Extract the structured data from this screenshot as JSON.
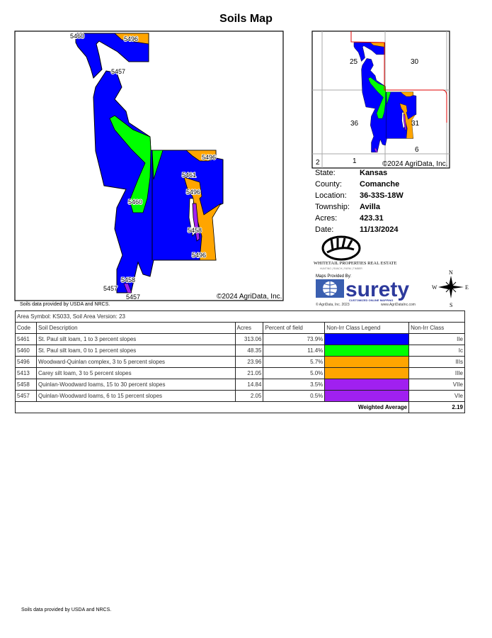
{
  "title": "Soils Map",
  "map": {
    "labels": [
      "5460",
      "5496",
      "5457",
      "5496",
      "5461",
      "5496",
      "5460",
      "5458",
      "5496",
      "5458",
      "5457",
      "5457"
    ],
    "copyright": "©2024 AgriData, Inc.",
    "source_note": "Soils data provided by USDA and NRCS."
  },
  "inset": {
    "sections": [
      "25",
      "30",
      "36",
      "31",
      "2",
      "1",
      "6"
    ],
    "copyright": "©2024 AgriData, Inc."
  },
  "info": [
    {
      "key": "State:",
      "value": "Kansas"
    },
    {
      "key": "County:",
      "value": "Comanche"
    },
    {
      "key": "Location:",
      "value": "36-33S-18W"
    },
    {
      "key": "Township:",
      "value": "Avilla"
    },
    {
      "key": "Acres:",
      "value": "423.31"
    },
    {
      "key": "Date:",
      "value": "11/13/2024"
    }
  ],
  "logos": {
    "whitetail_name": "WHITETAIL PROPERTIES REAL ESTATE",
    "whitetail_tag": "HUNTING | RANCH | FARM | TIMBER",
    "maps_provided": "Maps Provided By:",
    "surety": "surety",
    "surety_tag": "CUSTOMIZED ONLINE MAPPING",
    "agridata_copy": "© AgriData, Inc. 2023",
    "agridata_url": "www.AgriDataInc.com",
    "compass": [
      "N",
      "S",
      "W",
      "E"
    ]
  },
  "table": {
    "area_symbol": "Area Symbol: KS033, Soil Area Version: 23",
    "headers": [
      "Code",
      "Soil Description",
      "Acres",
      "Percent of field",
      "Non-Irr Class Legend",
      "Non-Irr Class"
    ],
    "rows": [
      {
        "code": "5461",
        "desc": "St. Paul silt loam, 1 to 3 percent slopes",
        "acres": "313.06",
        "pct": "73.9%",
        "color": "#0000ff",
        "cls": "IIe"
      },
      {
        "code": "5460",
        "desc": "St. Paul silt loam, 0 to 1 percent slopes",
        "acres": "48.35",
        "pct": "11.4%",
        "color": "#00ff00",
        "cls": "Ic"
      },
      {
        "code": "5496",
        "desc": "Woodward-Quinlan complex, 3 to 5 percent slopes",
        "acres": "23.96",
        "pct": "5.7%",
        "color": "#ffa500",
        "cls": "IIIs"
      },
      {
        "code": "5413",
        "desc": "Carey silt loam, 3 to 5 percent slopes",
        "acres": "21.05",
        "pct": "5.0%",
        "color": "#ffa500",
        "cls": "IIIe"
      },
      {
        "code": "5458",
        "desc": "Quinlan-Woodward loams, 15 to 30 percent slopes",
        "acres": "14.84",
        "pct": "3.5%",
        "color": "#a020f0",
        "cls": "VIIe"
      },
      {
        "code": "5457",
        "desc": "Quinlan-Woodward loams, 6 to 15 percent slopes",
        "acres": "2.05",
        "pct": "0.5%",
        "color": "#a020f0",
        "cls": "VIe"
      }
    ],
    "weighted_label": "Weighted Average",
    "weighted_value": "2.19"
  },
  "footer_note": "Soils data provided by USDA and NRCS."
}
